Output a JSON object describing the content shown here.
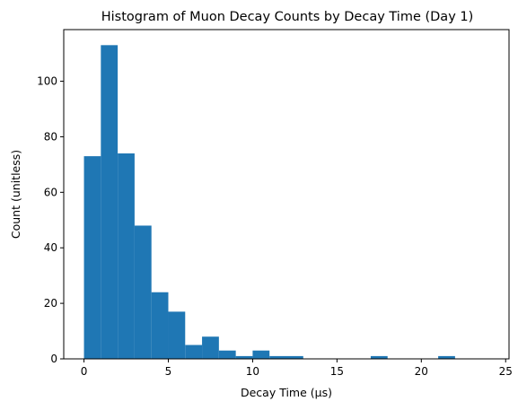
{
  "chart_data": {
    "type": "bar",
    "title": "Histogram of Muon Decay Counts by Decay Time (Day 1)",
    "xlabel": "Decay Time (μs)",
    "ylabel": "Count (unitless)",
    "xlim": [
      -1.2,
      25.2
    ],
    "ylim": [
      0,
      118.6
    ],
    "x_ticks": [
      0,
      5,
      10,
      15,
      20,
      25
    ],
    "y_ticks": [
      0,
      20,
      40,
      60,
      80,
      100
    ],
    "bin_width": 1,
    "bins": [
      {
        "x0": 0,
        "value": 73
      },
      {
        "x0": 1,
        "value": 113
      },
      {
        "x0": 2,
        "value": 74
      },
      {
        "x0": 3,
        "value": 48
      },
      {
        "x0": 4,
        "value": 24
      },
      {
        "x0": 5,
        "value": 17
      },
      {
        "x0": 6,
        "value": 5
      },
      {
        "x0": 7,
        "value": 8
      },
      {
        "x0": 8,
        "value": 3
      },
      {
        "x0": 9,
        "value": 1
      },
      {
        "x0": 10,
        "value": 3
      },
      {
        "x0": 11,
        "value": 1
      },
      {
        "x0": 12,
        "value": 1
      },
      {
        "x0": 13,
        "value": 0
      },
      {
        "x0": 14,
        "value": 0
      },
      {
        "x0": 15,
        "value": 0
      },
      {
        "x0": 16,
        "value": 0
      },
      {
        "x0": 17,
        "value": 1
      },
      {
        "x0": 18,
        "value": 0
      },
      {
        "x0": 19,
        "value": 0
      },
      {
        "x0": 20,
        "value": 0
      },
      {
        "x0": 21,
        "value": 1
      },
      {
        "x0": 22,
        "value": 0
      },
      {
        "x0": 23,
        "value": 0
      }
    ],
    "bar_color": "#1f77b4",
    "grid": false,
    "legend": "none"
  }
}
